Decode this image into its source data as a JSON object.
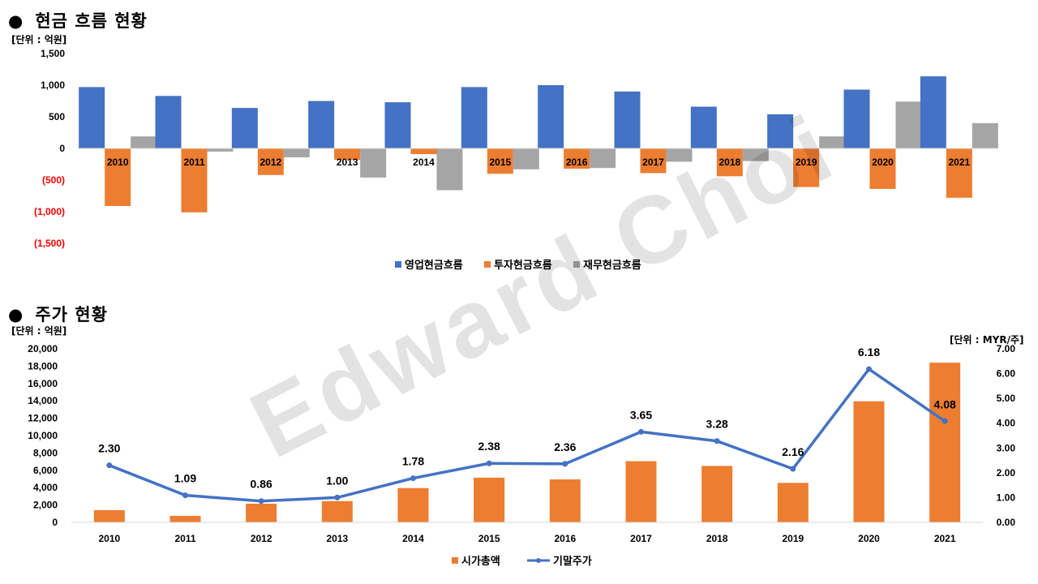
{
  "cashflow_section": {
    "bullet": "●",
    "title": "현금 흐름 현황",
    "unit": "[단위 : 억원]"
  },
  "stock_section": {
    "bullet": "●",
    "title": "주가 현황",
    "unit_left": "[단위 : 억원]",
    "unit_right": "[단위 : MYR/주]"
  },
  "watermark": "Edward Choi",
  "colors": {
    "operating": "#4472C4",
    "investing": "#ED7D31",
    "financing": "#A5A5A5",
    "market_cap": "#ED7D31",
    "price_line": "#4472C4",
    "negative_tick": "#FF0000"
  },
  "chart_data": [
    {
      "type": "bar",
      "categories": [
        "2010",
        "2011",
        "2012",
        "2013",
        "2014",
        "2015",
        "2016",
        "2017",
        "2018",
        "2019",
        "2020",
        "2021"
      ],
      "series": [
        {
          "name": "영업현금흐름",
          "values": [
            970,
            830,
            640,
            750,
            730,
            970,
            1000,
            900,
            660,
            540,
            930,
            1140
          ]
        },
        {
          "name": "투자현금흐름",
          "values": [
            -910,
            -1010,
            -420,
            -180,
            -90,
            -400,
            -320,
            -390,
            -440,
            -610,
            -640,
            -780
          ]
        },
        {
          "name": "재무현금흐름",
          "values": [
            190,
            -50,
            -140,
            -460,
            -660,
            -330,
            -310,
            -210,
            -200,
            190,
            740,
            400
          ]
        }
      ],
      "ylim": [
        -1500,
        1500
      ],
      "yticks": [
        "(1,500)",
        "(1,000)",
        "(500)",
        "0",
        "500",
        "1,000",
        "1,500"
      ],
      "legend": "bottom"
    },
    {
      "type": "bar+line",
      "categories": [
        "2010",
        "2011",
        "2012",
        "2013",
        "2014",
        "2015",
        "2016",
        "2017",
        "2018",
        "2019",
        "2020",
        "2021"
      ],
      "bar_series": {
        "name": "시가총액",
        "values": [
          1400,
          750,
          2150,
          2450,
          3950,
          5150,
          4950,
          7050,
          6500,
          4550,
          13950,
          18400
        ]
      },
      "line_series": {
        "name": "기말주가",
        "values": [
          2.3,
          1.09,
          0.86,
          1.0,
          1.78,
          2.38,
          2.36,
          3.65,
          3.28,
          2.16,
          6.18,
          4.08
        ],
        "labels": [
          "2.30",
          "1.09",
          "0.86",
          "1.00",
          "1.78",
          "2.38",
          "2.36",
          "3.65",
          "3.28",
          "2.16",
          "6.18",
          "4.08"
        ]
      },
      "ylim_left": [
        0,
        20000
      ],
      "yticks_left": [
        "0",
        "2,000",
        "4,000",
        "6,000",
        "8,000",
        "10,000",
        "12,000",
        "14,000",
        "16,000",
        "18,000",
        "20,000"
      ],
      "ylim_right": [
        0,
        7
      ],
      "yticks_right": [
        "0.00",
        "1.00",
        "2.00",
        "3.00",
        "4.00",
        "5.00",
        "6.00",
        "7.00"
      ],
      "legend": "bottom"
    }
  ]
}
